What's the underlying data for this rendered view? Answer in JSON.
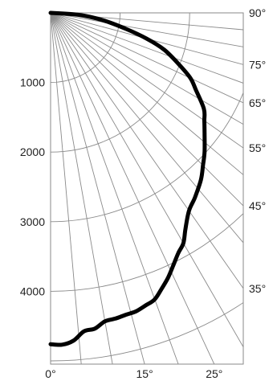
{
  "chart_data": {
    "type": "line",
    "subtype": "polar-luminous-intensity-distribution",
    "title": "",
    "xlabel": "",
    "ylabel": "",
    "radial_ticks": [
      {
        "value": 1000,
        "label": "1000"
      },
      {
        "value": 2000,
        "label": "2000"
      },
      {
        "value": 3000,
        "label": "3000"
      },
      {
        "value": 4000,
        "label": "4000"
      }
    ],
    "angle_ticks_right": [
      {
        "angle": 90,
        "label": "90°"
      },
      {
        "angle": 75,
        "label": "75°"
      },
      {
        "angle": 65,
        "label": "65°"
      },
      {
        "angle": 55,
        "label": "55°"
      },
      {
        "angle": 45,
        "label": "45°"
      },
      {
        "angle": 35,
        "label": "35°"
      }
    ],
    "angle_ticks_bottom": [
      {
        "angle": 0,
        "label": "0°"
      },
      {
        "angle": 15,
        "label": "15°"
      },
      {
        "angle": 25,
        "label": "25°"
      }
    ],
    "radial_gridlines": [
      1000,
      2000,
      3000,
      4000,
      5000
    ],
    "angle_gridlines": [
      0,
      5,
      10,
      15,
      20,
      25,
      30,
      35,
      40,
      45,
      50,
      55,
      60,
      65,
      70,
      75,
      80,
      85,
      90
    ],
    "series": [
      {
        "angles_deg": [
          0,
          2,
          4,
          6,
          8,
          10,
          12,
          14,
          16,
          18,
          20,
          22,
          24,
          26,
          28,
          30,
          32,
          35,
          38,
          42,
          45,
          48,
          52,
          55,
          58,
          62,
          65,
          68,
          72,
          75,
          78,
          82,
          86,
          90
        ],
        "values": [
          4760,
          4770,
          4720,
          4600,
          4580,
          4500,
          4490,
          4470,
          4460,
          4420,
          4380,
          4270,
          4160,
          4030,
          3910,
          3820,
          3660,
          3470,
          3370,
          3230,
          3100,
          2980,
          2810,
          2700,
          2600,
          2370,
          2220,
          2000,
          1720,
          1430,
          1110,
          760,
          400,
          0
        ]
      }
    ]
  }
}
